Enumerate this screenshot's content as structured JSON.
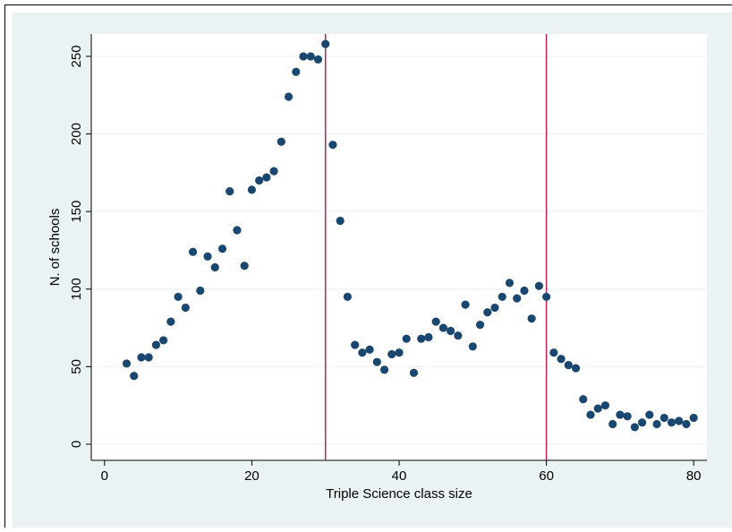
{
  "chart_data": {
    "type": "scatter",
    "x_label": "Triple Science class size",
    "y_label": "N. of schools",
    "x": [
      3,
      4,
      5,
      6,
      7,
      8,
      9,
      10,
      11,
      12,
      13,
      14,
      15,
      16,
      17,
      18,
      19,
      20,
      21,
      22,
      23,
      24,
      25,
      26,
      27,
      28,
      29,
      30,
      31,
      32,
      33,
      34,
      35,
      36,
      37,
      38,
      39,
      40,
      41,
      42,
      43,
      44,
      45,
      46,
      47,
      48,
      49,
      50,
      51,
      52,
      53,
      54,
      55,
      56,
      57,
      58,
      59,
      60,
      61,
      62,
      63,
      64,
      65,
      66,
      67,
      68,
      69,
      70,
      71,
      72,
      73,
      74,
      75,
      76,
      77,
      78,
      79,
      80
    ],
    "values": [
      52,
      44,
      56,
      56,
      64,
      67,
      79,
      95,
      88,
      124,
      99,
      121,
      114,
      126,
      163,
      138,
      115,
      164,
      170,
      172,
      176,
      195,
      224,
      240,
      250,
      250,
      248,
      258,
      193,
      144,
      95,
      64,
      59,
      61,
      53,
      48,
      58,
      59,
      68,
      46,
      68,
      69,
      79,
      75,
      73,
      70,
      90,
      63,
      77,
      85,
      88,
      95,
      104,
      94,
      99,
      81,
      102,
      95,
      59,
      55,
      51,
      49,
      29,
      19,
      23,
      25,
      13,
      19,
      18,
      11,
      14,
      19,
      13,
      17,
      14,
      15,
      13,
      17
    ],
    "color": "#1a476f",
    "vlines": [
      30,
      60
    ],
    "vline_color": "#b0245a",
    "xlim": [
      -1.8,
      81.8
    ],
    "xticks": [
      0,
      20,
      40,
      60,
      80
    ],
    "ylim": [
      -10.4,
      264.4
    ],
    "yticks": [
      0,
      50,
      100,
      150,
      200,
      250
    ],
    "grid": true
  }
}
